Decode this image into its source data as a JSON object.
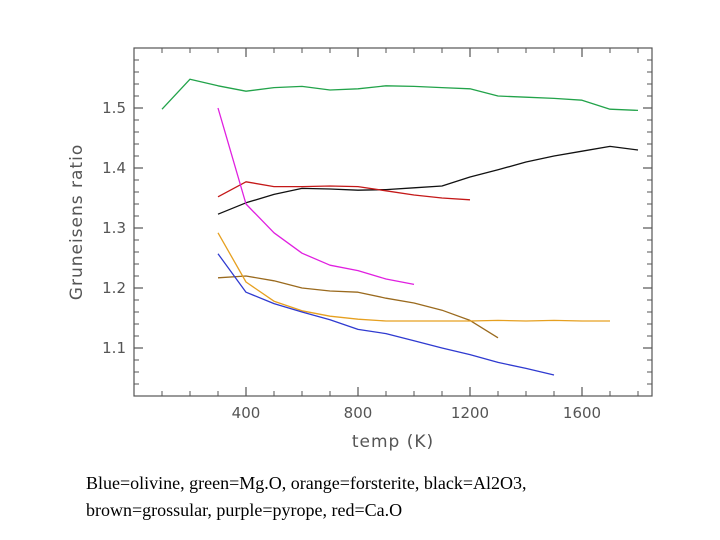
{
  "chart_data": {
    "type": "line",
    "title": "",
    "xlabel": "temp (K)",
    "ylabel": "Gruneisens ratio",
    "xlim": [
      0,
      1850
    ],
    "ylim": [
      1.02,
      1.6
    ],
    "x_ticks": [
      400,
      800,
      1200,
      1600
    ],
    "x_tick_labels": [
      "400",
      "800",
      "1200",
      "1600"
    ],
    "y_ticks": [
      1.1,
      1.2,
      1.3,
      1.4,
      1.5
    ],
    "y_tick_labels": [
      "1.1",
      "1.2",
      "1.3",
      "1.4",
      "1.5"
    ],
    "grid": false,
    "series": [
      {
        "name": "Mg.O",
        "color": "#22a34a",
        "x": [
          100,
          200,
          300,
          400,
          500,
          600,
          700,
          800,
          900,
          1000,
          1100,
          1200,
          1300,
          1400,
          1500,
          1600,
          1700,
          1800
        ],
        "y": [
          1.498,
          1.548,
          1.537,
          1.528,
          1.534,
          1.536,
          1.53,
          1.532,
          1.537,
          1.536,
          1.534,
          1.532,
          1.52,
          1.518,
          1.516,
          1.513,
          1.498,
          1.496
        ]
      },
      {
        "name": "Al2O3",
        "color": "#111111",
        "x": [
          300,
          400,
          500,
          600,
          700,
          800,
          900,
          1000,
          1100,
          1200,
          1300,
          1400,
          1500,
          1600,
          1700,
          1800
        ],
        "y": [
          1.323,
          1.342,
          1.356,
          1.366,
          1.365,
          1.363,
          1.364,
          1.367,
          1.37,
          1.385,
          1.397,
          1.41,
          1.42,
          1.428,
          1.436,
          1.43
        ]
      },
      {
        "name": "Ca.O",
        "color": "#c41818",
        "x": [
          300,
          400,
          500,
          600,
          700,
          800,
          900,
          1000,
          1100,
          1200
        ],
        "y": [
          1.352,
          1.377,
          1.369,
          1.369,
          1.37,
          1.369,
          1.362,
          1.355,
          1.35,
          1.347
        ]
      },
      {
        "name": "pyrope",
        "color": "#e020e0",
        "x": [
          300,
          400,
          500,
          600,
          700,
          800,
          900,
          1000
        ],
        "y": [
          1.5,
          1.34,
          1.292,
          1.258,
          1.238,
          1.229,
          1.215,
          1.206
        ]
      },
      {
        "name": "grossular",
        "color": "#9a6a1e",
        "x": [
          300,
          400,
          500,
          600,
          700,
          800,
          900,
          1000,
          1100,
          1200,
          1300
        ],
        "y": [
          1.217,
          1.22,
          1.212,
          1.2,
          1.195,
          1.193,
          1.183,
          1.175,
          1.163,
          1.146,
          1.117
        ]
      },
      {
        "name": "forsterite",
        "color": "#e6a020",
        "x": [
          300,
          400,
          500,
          600,
          700,
          800,
          900,
          1000,
          1100,
          1200,
          1300,
          1400,
          1500,
          1600,
          1700
        ],
        "y": [
          1.292,
          1.21,
          1.178,
          1.162,
          1.153,
          1.148,
          1.145,
          1.145,
          1.145,
          1.145,
          1.146,
          1.145,
          1.146,
          1.145,
          1.145
        ]
      },
      {
        "name": "olivine",
        "color": "#2f3ad0",
        "x": [
          300,
          400,
          500,
          600,
          700,
          800,
          900,
          1000,
          1100,
          1200,
          1300,
          1400,
          1500
        ],
        "y": [
          1.257,
          1.193,
          1.174,
          1.16,
          1.147,
          1.131,
          1.124,
          1.112,
          1.1,
          1.089,
          1.076,
          1.066,
          1.055
        ]
      }
    ]
  },
  "caption": {
    "line1": "Blue=olivine, green=Mg.O, orange=forsterite, black=Al2O3,",
    "line2": "brown=grossular, purple=pyrope, red=Ca.O"
  }
}
